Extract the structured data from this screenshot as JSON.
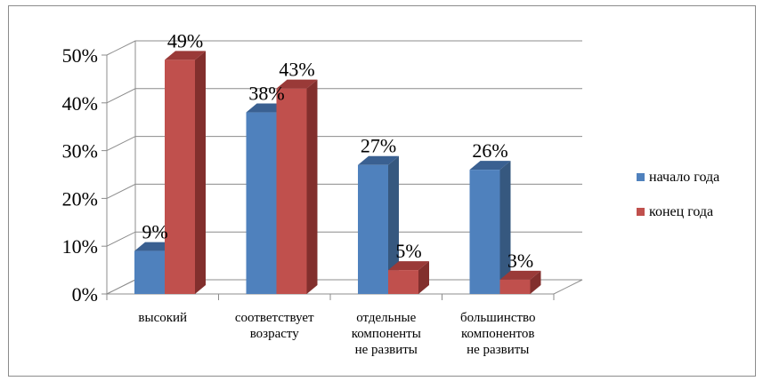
{
  "chart_data": {
    "type": "bar",
    "style": "3d-clustered-column",
    "categories": [
      [
        "высокий"
      ],
      [
        "соответствует",
        "возрасту"
      ],
      [
        "отдельные",
        "компоненты",
        "не развиты"
      ],
      [
        "большинство",
        "компонентов",
        "не развиты"
      ]
    ],
    "series": [
      {
        "name": "начало года",
        "color": "#4f81bd",
        "side_color": "#36587f",
        "top_color": "#3a6091",
        "values": [
          9,
          38,
          27,
          26
        ],
        "labels": [
          "9%",
          "38%",
          "27%",
          "26%"
        ]
      },
      {
        "name": "конец года",
        "color": "#c0504d",
        "side_color": "#822f2d",
        "top_color": "#9a3a38",
        "values": [
          49,
          43,
          5,
          3
        ],
        "labels": [
          "49%",
          "43%",
          "5%",
          "3%"
        ]
      }
    ],
    "y_ticks": [
      "0%",
      "10%",
      "20%",
      "30%",
      "40%",
      "50%"
    ],
    "ylim": [
      0,
      50
    ],
    "grid": true,
    "legend_position": "right"
  }
}
